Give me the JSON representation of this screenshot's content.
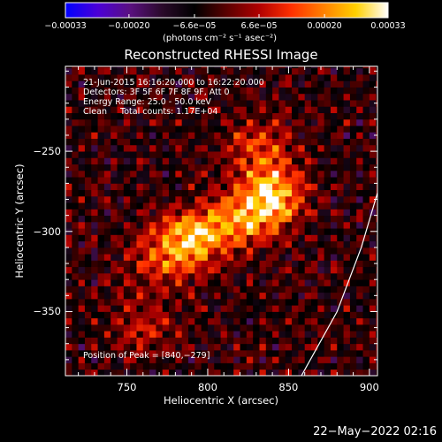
{
  "chart_data": {
    "type": "heatmap",
    "title": "Reconstructed RHESSI Image",
    "xlabel": "Heliocentric X (arcsec)",
    "ylabel": "Heliocentric Y (arcsec)",
    "xlim": [
      712,
      905
    ],
    "ylim": [
      -390,
      -197
    ],
    "x_ticks": [
      750,
      800,
      850,
      900
    ],
    "y_ticks": [
      -350,
      -300,
      -250
    ],
    "x_tick_labels": [
      "750",
      "800",
      "850",
      "900"
    ],
    "y_tick_labels": [
      "−350",
      "−300",
      "−250"
    ],
    "colorbar": {
      "range": [
        -0.00033,
        0.00033
      ],
      "tick_values": [
        -0.00033,
        -0.0002,
        -6.6e-05,
        6.6e-05,
        0.0002,
        0.00033
      ],
      "tick_labels": [
        "−0.00033",
        "−0.00020",
        "−6.6e−05",
        "6.6e−05",
        "0.00020",
        "0.00033"
      ],
      "unit_label": "(photons cm⁻² s⁻¹ asec⁻²)",
      "colormap": [
        "#0000ff",
        "#4b00d8",
        "#5a1080",
        "#2a0a2a",
        "#000000",
        "#5a0000",
        "#b00000",
        "#ff3000",
        "#ff8000",
        "#ffd000",
        "#ffffff"
      ]
    },
    "sources": [
      {
        "x": 840,
        "y": -279,
        "peak": 0.00033
      },
      {
        "x": 790,
        "y": -304,
        "peak": 0.00029
      },
      {
        "x": 818,
        "y": -294,
        "peak": 0.00021
      },
      {
        "x": 832,
        "y": -248,
        "peak": 0.00017
      },
      {
        "x": 770,
        "y": -318,
        "peak": 0.00015
      },
      {
        "x": 760,
        "y": -360,
        "peak": 0.00011
      }
    ],
    "limb_curve": [
      [
        858,
        -390
      ],
      [
        880,
        -350
      ],
      [
        895,
        -310
      ],
      [
        905,
        -276
      ]
    ],
    "limb_color": "#ffffff"
  },
  "annotations": {
    "time_range": "21-Jun-2015 16:16:20.000 to 16:22:20.000",
    "detectors": "Detectors: 3F 5F 6F 7F 8F 9F, Att 0",
    "energy": "Energy Range: 25.0 - 50.0 keV",
    "clean": "Clean     Total counts: 1.17E+04",
    "peak": "Position of Peak = [840,−279]"
  },
  "date_stamp": "22−May−2022 02:16"
}
